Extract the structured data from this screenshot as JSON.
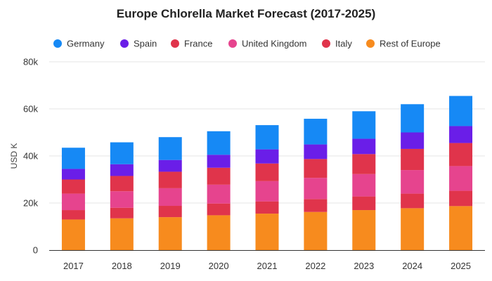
{
  "chart_data": {
    "type": "bar",
    "stacked": true,
    "title": "Europe Chlorella Market Forecast (2017-2025)",
    "ylabel": "USD K",
    "xlabel": "",
    "ylim": [
      0,
      80000
    ],
    "yticks": [
      0,
      20000,
      40000,
      60000,
      80000
    ],
    "ytick_labels": [
      "0",
      "20k",
      "40k",
      "60k",
      "80k"
    ],
    "grid": true,
    "legend_position": "top",
    "categories": [
      "2017",
      "2018",
      "2019",
      "2020",
      "2021",
      "2022",
      "2023",
      "2024",
      "2025"
    ],
    "series": [
      {
        "name": "Rest of Europe",
        "color": "#f78b1e",
        "values": [
          13000,
          13500,
          14000,
          14800,
          15500,
          16200,
          17000,
          17800,
          18700
        ]
      },
      {
        "name": "Italy",
        "color": "#e0344b",
        "values": [
          4000,
          4500,
          4800,
          5000,
          5200,
          5500,
          5800,
          6200,
          6500
        ]
      },
      {
        "name": "United Kingdom",
        "color": "#e6448e",
        "values": [
          7000,
          7000,
          7500,
          8000,
          8600,
          9000,
          9500,
          10000,
          10500
        ]
      },
      {
        "name": "France",
        "color": "#e0344b",
        "values": [
          6000,
          6500,
          7000,
          7200,
          7500,
          8000,
          8500,
          9000,
          9800
        ]
      },
      {
        "name": "Spain",
        "color": "#6a1ee8",
        "values": [
          4500,
          5000,
          5000,
          5500,
          6000,
          6200,
          6500,
          7000,
          7200
        ]
      },
      {
        "name": "Germany",
        "color": "#1689f5",
        "values": [
          9000,
          9300,
          9700,
          10000,
          10300,
          10900,
          11700,
          12000,
          12800
        ]
      }
    ],
    "legend_order": [
      "Germany",
      "Spain",
      "France",
      "United Kingdom",
      "Italy",
      "Rest of Europe"
    ]
  }
}
